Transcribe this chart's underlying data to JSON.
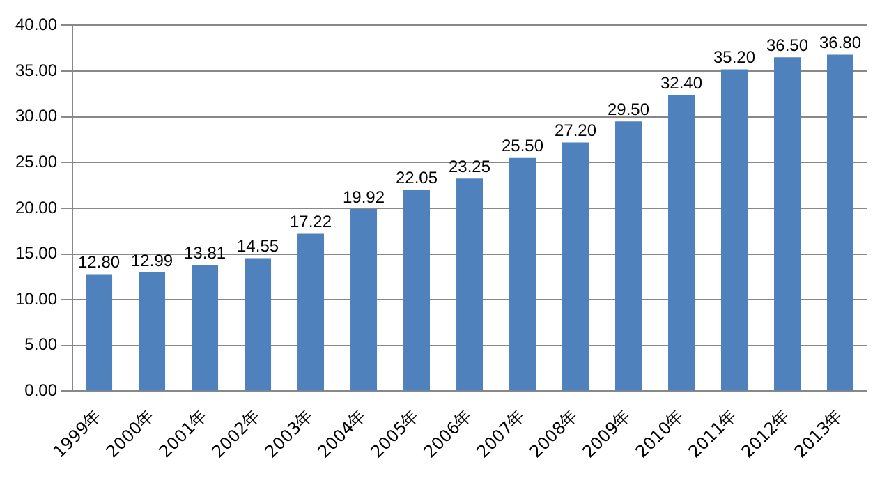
{
  "chart_data": {
    "type": "bar",
    "categories": [
      "1999年",
      "2000年",
      "2001年",
      "2002年",
      "2003年",
      "2004年",
      "2005年",
      "2006年",
      "2007年",
      "2008年",
      "2009年",
      "2010年",
      "2011年",
      "2012年",
      "2013年"
    ],
    "values": [
      12.8,
      12.99,
      13.81,
      14.55,
      17.22,
      19.92,
      22.05,
      23.25,
      25.5,
      27.2,
      29.5,
      32.4,
      35.2,
      36.5,
      36.8
    ],
    "value_labels": [
      "12.80",
      "12.99",
      "13.81",
      "14.55",
      "17.22",
      "19.92",
      "22.05",
      "23.25",
      "25.50",
      "27.20",
      "29.50",
      "32.40",
      "35.20",
      "36.50",
      "36.80"
    ],
    "color": "#4f81bd",
    "ylim": [
      0,
      40
    ],
    "yticks": [
      {
        "value": 0,
        "label": "0.00"
      },
      {
        "value": 5,
        "label": "5.00"
      },
      {
        "value": 10,
        "label": "10.00"
      },
      {
        "value": 15,
        "label": "15.00"
      },
      {
        "value": 20,
        "label": "20.00"
      },
      {
        "value": 25,
        "label": "25.00"
      },
      {
        "value": 30,
        "label": "30.00"
      },
      {
        "value": 35,
        "label": "35.00"
      },
      {
        "value": 40,
        "label": "40.00"
      }
    ],
    "grid": "y"
  }
}
